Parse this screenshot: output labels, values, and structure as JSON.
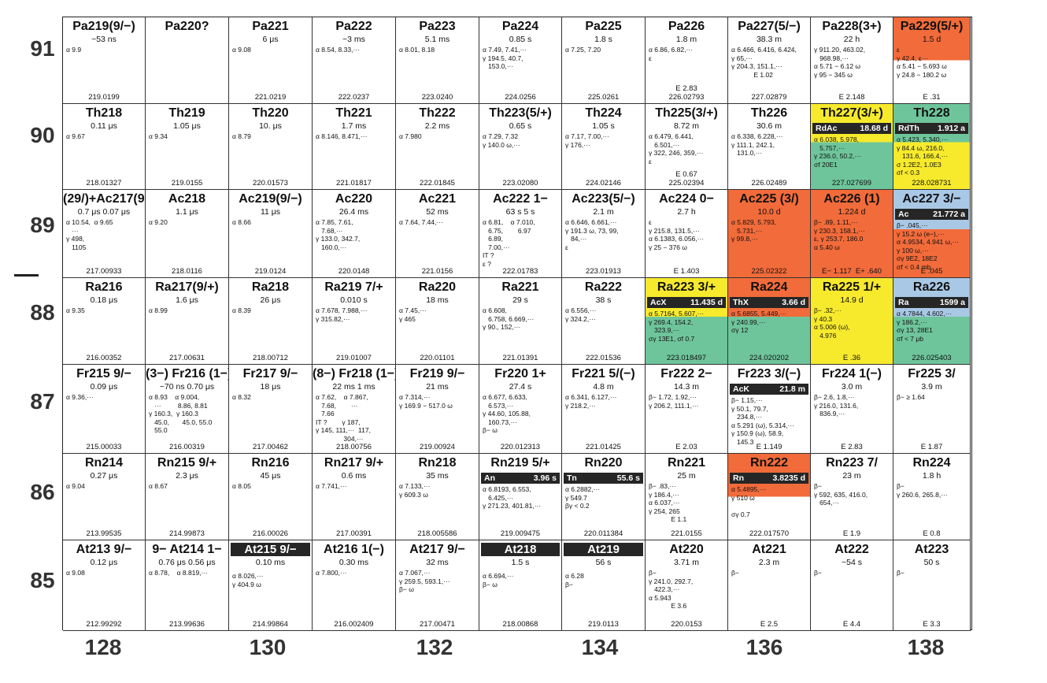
{
  "proton_numbers": [
    "91",
    "90",
    "89",
    "88",
    "87",
    "86",
    "85"
  ],
  "neutron_numbers": [
    "128",
    "130",
    "132",
    "134",
    "136",
    "138"
  ],
  "colors": {
    "red": "#f26b3a",
    "yellow": "#f7ea2c",
    "blue": "#a9c8e6",
    "green": "#6fc59b",
    "dark": "#262626"
  },
  "rows": [
    {
      "z": "91",
      "cells": [
        {
          "name": "Pa219(9/−)",
          "hl": "~53 ns",
          "decay": "α 9.9",
          "mass": "219.0199"
        },
        {
          "name": "Pa220?",
          "hl": "",
          "decay": "",
          "mass": ""
        },
        {
          "name": "Pa221",
          "hl": "6 μs",
          "decay": "α 9.08",
          "mass": "221.0219"
        },
        {
          "name": "Pa222",
          "hl": "~3 ms",
          "decay": "α 8.54, 8.33,···",
          "mass": "222.0237"
        },
        {
          "name": "Pa223",
          "hl": "5.1 ms",
          "decay": "α 8.01, 8.18",
          "mass": "223.0240"
        },
        {
          "name": "Pa224",
          "hl": "0.85 s",
          "decay": "α 7.49, 7.41,···\nγ 194.5, 40.7,\n   153.0,···",
          "mass": "224.0256"
        },
        {
          "name": "Pa225",
          "hl": "1.8 s",
          "decay": "α 7.25, 7.20",
          "mass": "225.0261"
        },
        {
          "name": "Pa226",
          "hl": "1.8 m",
          "decay": "α 6.86, 6.82,···\nε",
          "mass": "E 2.83\n226.02793"
        },
        {
          "name": "Pa227(5/−)",
          "hl": "38.3 m",
          "decay": "α 6.466, 6.416, 6.424,\nγ 65,···\nγ 204.3, 151.1,···\n            E 1.02",
          "mass": "227.02879"
        },
        {
          "name": "Pa228(3+)",
          "hl": "22 h",
          "decay": "γ 911.20, 463.02,\n   968.98,···\nα 5.71 − 6.12 ω\nγ 95 − 345 ω",
          "mass": "E 2.148"
        },
        {
          "name": "Pa229(5/+)",
          "hl": "1.5 d",
          "decay": "ε\nγ 42.4, ε···\nα 5.41 − 5.693 ω\nγ 24.8 − 180.2 ω",
          "mass": "E .31",
          "color": "red",
          "split": 0.5
        }
      ]
    },
    {
      "z": "90",
      "cells": [
        {
          "name": "Th218",
          "hl": "0.11 μs",
          "decay": "α 9.67",
          "mass": "218.01327"
        },
        {
          "name": "Th219",
          "hl": "1.05 μs",
          "decay": "α 9.34",
          "mass": "219.0155"
        },
        {
          "name": "Th220",
          "hl": "10. μs",
          "decay": "α 8.79",
          "mass": "220.01573"
        },
        {
          "name": "Th221",
          "hl": "1.7 ms",
          "decay": "α 8.146, 8.471,···",
          "mass": "221.01817"
        },
        {
          "name": "Th222",
          "hl": "2.2 ms",
          "decay": "α 7.980",
          "mass": "222.01845"
        },
        {
          "name": "Th223(5/+)",
          "hl": "0.65 s",
          "decay": "α 7.29, 7.32\nγ 140.0 ω,···",
          "mass": "223.02080"
        },
        {
          "name": "Th224",
          "hl": "1.05 s",
          "decay": "α 7.17, 7.00,···\nγ 176,···",
          "mass": "224.02146"
        },
        {
          "name": "Th225(3/+)",
          "hl": "8.72 m",
          "decay": "α 6.479, 6.441,\n   6.501,···\nγ 322, 246, 359,···\nε",
          "mass": "E 0.67\n225.02394"
        },
        {
          "name": "Th226",
          "hl": "30.6 m",
          "decay": "α 6.338, 6.228,···\nγ 111.1, 242.1,\n   131.0,···",
          "mass": "226.02489"
        },
        {
          "name": "Th227(3/+)",
          "banner": [
            "RdAc",
            "18.68 d"
          ],
          "decay": "α 6.038, 5.978,\n   5.757,···\nγ 236.0, 50.2,···\nσf 20E1",
          "mass": "227.027699",
          "color": "yellow",
          "color2": "green"
        },
        {
          "name": "Th228",
          "banner": [
            "RdTh",
            "1.912 a"
          ],
          "decay": "α 5.423, 5.340,···\nγ 84.4 ω, 216.0,\n   131.6, 166.4,···\nσ 1.2E2, 1.0E3\nσf < 0.3",
          "mass": "228.028731",
          "color": "green",
          "color2": "yellow"
        }
      ]
    },
    {
      "z": "89",
      "cells": [
        {
          "name": "(29/)+Ac217(9/−)",
          "hl": "0.7 μs   0.07 μs",
          "decay": "α 10.54,  α 9.65\n   ···\nγ 498,\n   1105",
          "mass": "217.00933"
        },
        {
          "name": "Ac218",
          "hl": "1.1 μs",
          "decay": "α 9.20",
          "mass": "218.0116"
        },
        {
          "name": "Ac219(9/−)",
          "hl": "11 μs",
          "decay": "α 8.66",
          "mass": "219.0124"
        },
        {
          "name": "Ac220",
          "hl": "26.4 ms",
          "decay": "α 7.85, 7.61,\n   7.68,···\nγ 133.0, 342.7,\n   160.0,···",
          "mass": "220.0148"
        },
        {
          "name": "Ac221",
          "hl": "52 ms",
          "decay": "α 7.64, 7.44,···",
          "mass": "221.0156"
        },
        {
          "name": "Ac222 1−",
          "hl": "63 s       5 s",
          "decay": "α 6.81,    α 7.010,\n   6.75,        6.97\n   6.89,\n   7.00,···\nIT ?\nε ?",
          "mass": "222.01783"
        },
        {
          "name": "Ac223(5/−)",
          "hl": "2.1 m",
          "decay": "α 6.646, 6.661,···\nγ 191.3 ω, 73, 99,\n   84,···\nε",
          "mass": "223.01913"
        },
        {
          "name": "Ac224 0−",
          "hl": "2.7 h",
          "decay": "ε\nγ 215.8, 131.5,···\nα 6.1383, 6.056,···\nγ 25 − 376 ω",
          "mass": "E 1.403"
        },
        {
          "name": "Ac225 (3/)",
          "hl": "10.0 d",
          "decay": "α 5.829, 5.793,\n   5.731,···\nγ 99.8,···",
          "mass": "225.02322",
          "color": "red"
        },
        {
          "name": "Ac226 (1)",
          "hl": "1.224 d",
          "decay": "β− .89, 1.11,···\nγ 230.3, 158.1,···\nε, γ 253.7, 186.0\nα 5.40 ω",
          "mass": "E− 1.117  E+ .640",
          "color": "red"
        },
        {
          "name": "Ac227 3/−",
          "banner": [
            "Ac",
            "21.772 a"
          ],
          "decay": "β− .045,···\nγ 15.2 ω (e−),···\nα 4.9534, 4.941 ω,···\nγ 100 ω,···\nσγ 9E2, 18E2\nσf < 0.4 mb",
          "mass": "E .045",
          "color": "blue",
          "color2": "red"
        }
      ]
    },
    {
      "z": "88",
      "cells": [
        {
          "name": "Ra216",
          "hl": "0.18 μs",
          "decay": "α 9.35",
          "mass": "216.00352"
        },
        {
          "name": "Ra217(9/+)",
          "hl": "1.6 μs",
          "decay": "α 8.99",
          "mass": "217.00631"
        },
        {
          "name": "Ra218",
          "hl": "26 μs",
          "decay": "α 8.39",
          "mass": "218.00712"
        },
        {
          "name": "Ra219 7/+",
          "hl": "0.010 s",
          "decay": "α 7.678, 7.988,···\nγ 315.82,···",
          "mass": "219.01007"
        },
        {
          "name": "Ra220",
          "hl": "18 ms",
          "decay": "α 7.45,···\nγ 465",
          "mass": "220.01101"
        },
        {
          "name": "Ra221",
          "hl": "29 s",
          "decay": "α 6.608,\n   6.758, 6.669,···\nγ 90., 152,···",
          "mass": "221.01391"
        },
        {
          "name": "Ra222",
          "hl": "38 s",
          "decay": "α 6.556,···\nγ 324.2,···",
          "mass": "222.01536"
        },
        {
          "name": "Ra223 3/+",
          "banner": [
            "AcX",
            "11.435 d"
          ],
          "decay": "α 5.7164, 5.607,···\nγ 269.4, 154.2,\n   323.9,···\nσγ 13E1, σf 0.7",
          "mass": "223.018497",
          "color": "yellow",
          "color2": "green"
        },
        {
          "name": "Ra224",
          "banner": [
            "ThX",
            "3.66 d"
          ],
          "decay": "α 5.6855, 5.449,···\nγ 240.99,···\nσγ 12",
          "mass": "224.020202",
          "color": "red",
          "color2": "green"
        },
        {
          "name": "Ra225 1/+",
          "hl": "14.9 d",
          "decay": "β− .32,···\nγ 40.3\nα 5.006 (ω),\n   4.976",
          "mass": "E .36",
          "color": "yellow"
        },
        {
          "name": "Ra226",
          "banner": [
            "Ra",
            "1599 a"
          ],
          "decay": "α 4.7844, 4.602,···\nγ 186.2,···\nσγ 13, 28E1\nσf < 7 μb",
          "mass": "226.025403",
          "color": "blue",
          "color2": "green"
        }
      ]
    },
    {
      "z": "87",
      "cells": [
        {
          "name": "Fr215 9/−",
          "hl": "0.09 μs",
          "decay": "α 9.36,···",
          "mass": "215.00033"
        },
        {
          "name": "(3−) Fr216 (1−)",
          "hl": "~70 ns   0.70 μs",
          "decay": "α 8.93    α 9.004,\n   ···         8.86, 8.81\nγ 160.3,  γ 160.3\n   45.0,       45.0, 55.0\n   55.0",
          "mass": "216.00319"
        },
        {
          "name": "Fr217 9/−",
          "hl": "18 μs",
          "decay": "α 8.32",
          "mass": "217.00462"
        },
        {
          "name": "(8−) Fr218 (1−)",
          "hl": "22 ms    1 ms",
          "decay": "α 7.62,    α 7.867,\n   7.68,        ···\n   7.66\nIT ?        γ 187,\nγ 145, 111,···  117,\n               304,···",
          "mass": "218.00756"
        },
        {
          "name": "Fr219 9/−",
          "hl": "21 ms",
          "decay": "α 7.314,···\nγ 169.9 − 517.0 ω",
          "mass": "219.00924"
        },
        {
          "name": "Fr220 1+",
          "hl": "27.4 s",
          "decay": "α 6.677, 6.633,\n   6.573,···\nγ 44.60, 105.88,\n   160.73,···\nβ− ω",
          "mass": "220.012313"
        },
        {
          "name": "Fr221 5/(−)",
          "hl": "4.8 m",
          "decay": "α 6.341, 6.127,···\nγ 218.2,···",
          "mass": "221.01425"
        },
        {
          "name": "Fr222 2−",
          "hl": "14.3 m",
          "decay": "β− 1.72, 1.92,···\nγ 206.2, 111.1,···",
          "mass": "E 2.03"
        },
        {
          "name": "Fr223 3/(−)",
          "banner": [
            "AcK",
            "21.8 m"
          ],
          "decay": "β− 1.15,···\nγ 50.1, 79.7,\n   234.8,···\nα 5.291 (ω), 5.314,···\nγ 150.9 (ω), 58.9,\n   145.3",
          "mass": "E 1.149"
        },
        {
          "name": "Fr224 1(−)",
          "hl": "3.0 m",
          "decay": "β− 2.6, 1.8,···\nγ 216.0, 131.6,\n   836.9,···",
          "mass": "E 2.83"
        },
        {
          "name": "Fr225 3/",
          "hl": "3.9 m",
          "decay": "β− ≥ 1.64",
          "mass": "E 1.87"
        }
      ]
    },
    {
      "z": "86",
      "cells": [
        {
          "name": "Rn214",
          "hl": "0.27 μs",
          "decay": "α 9.04",
          "mass": "213.99535"
        },
        {
          "name": "Rn215 9/+",
          "hl": "2.3 μs",
          "decay": "α 8.67",
          "mass": "214.99873"
        },
        {
          "name": "Rn216",
          "hl": "45 μs",
          "decay": "α 8.05",
          "mass": "216.00026"
        },
        {
          "name": "Rn217 9/+",
          "hl": "0.6 ms",
          "decay": "α 7.741,···",
          "mass": "217.00391"
        },
        {
          "name": "Rn218",
          "hl": "35 ms",
          "decay": "α 7.133,···\nγ 609.3 ω",
          "mass": "218.005586"
        },
        {
          "name": "Rn219 5/+",
          "banner": [
            "An",
            "3.96 s"
          ],
          "decay": "α 6.8193, 6.553,\n   6.425,···\nγ 271.23, 401.81,···",
          "mass": "219.009475"
        },
        {
          "name": "Rn220",
          "banner": [
            "Tn",
            "55.6 s"
          ],
          "decay": "α 6.2882,···\nγ 549.7\nβγ < 0.2",
          "mass": "220.011384"
        },
        {
          "name": "Rn221",
          "hl": "25 m",
          "decay": "β− .83,···\nγ 186.4,···\nα 6.037,···\nγ 254, 265\n            E 1.1",
          "mass": "221.0155"
        },
        {
          "name": "Rn222",
          "banner": [
            "Rn",
            "3.8235 d"
          ],
          "decay": "α 5.4895,···\nγ 510 ω\n\nσγ 0.7",
          "mass": "222.017570",
          "color": "red",
          "split": 0.5
        },
        {
          "name": "Rn223 7/",
          "hl": "23 m",
          "decay": "β−\nγ 592, 635, 416.0,\n   654,···",
          "mass": "E 1.9"
        },
        {
          "name": "Rn224",
          "hl": "1.8 h",
          "decay": "β−\nγ 260.6, 265.8,···",
          "mass": "E 0.8"
        }
      ]
    },
    {
      "z": "85",
      "cells": [
        {
          "name": "At213 9/−",
          "hl": "0.12 μs",
          "decay": "α 9.08",
          "mass": "212.99292"
        },
        {
          "name": "9− At214 1−",
          "hl": "0.76 μs   0.56 μs",
          "decay": "α 8.78,    α 8.819,···",
          "mass": "213.99636"
        },
        {
          "name": "At215 9/−",
          "full": true,
          "hl": "0.10 ms",
          "decay": "α 8.026,···\nγ 404.9 ω",
          "mass": "214.99864"
        },
        {
          "name": "At216 1(−)",
          "hl": "0.30 ms",
          "decay": "α 7.800,···",
          "mass": "216.002409"
        },
        {
          "name": "At217 9/−",
          "hl": "32 ms",
          "decay": "α 7.067,···\nγ 259.5, 593.1,···\nβ− ω",
          "mass": "217.00471"
        },
        {
          "name": "At218",
          "full": true,
          "hl": "1.5 s",
          "decay": "α 6.694,···\nβ− ω",
          "mass": "218.00868"
        },
        {
          "name": "At219",
          "full": true,
          "hl": "56 s",
          "decay": "α 6.28\nβ−",
          "mass": "219.0113"
        },
        {
          "name": "At220",
          "hl": "3.71 m",
          "decay": "β−\nγ 241.0, 292.7,\n   422.3,···\nα 5.943\n            E 3.6",
          "mass": "220.0153"
        },
        {
          "name": "At221",
          "hl": "2.3 m",
          "decay": "β−",
          "mass": "E 2.5"
        },
        {
          "name": "At222",
          "hl": "~54 s",
          "decay": "β−",
          "mass": "E 4.4"
        },
        {
          "name": "At223",
          "hl": "50 s",
          "decay": "β−",
          "mass": "E 3.3"
        }
      ]
    }
  ]
}
